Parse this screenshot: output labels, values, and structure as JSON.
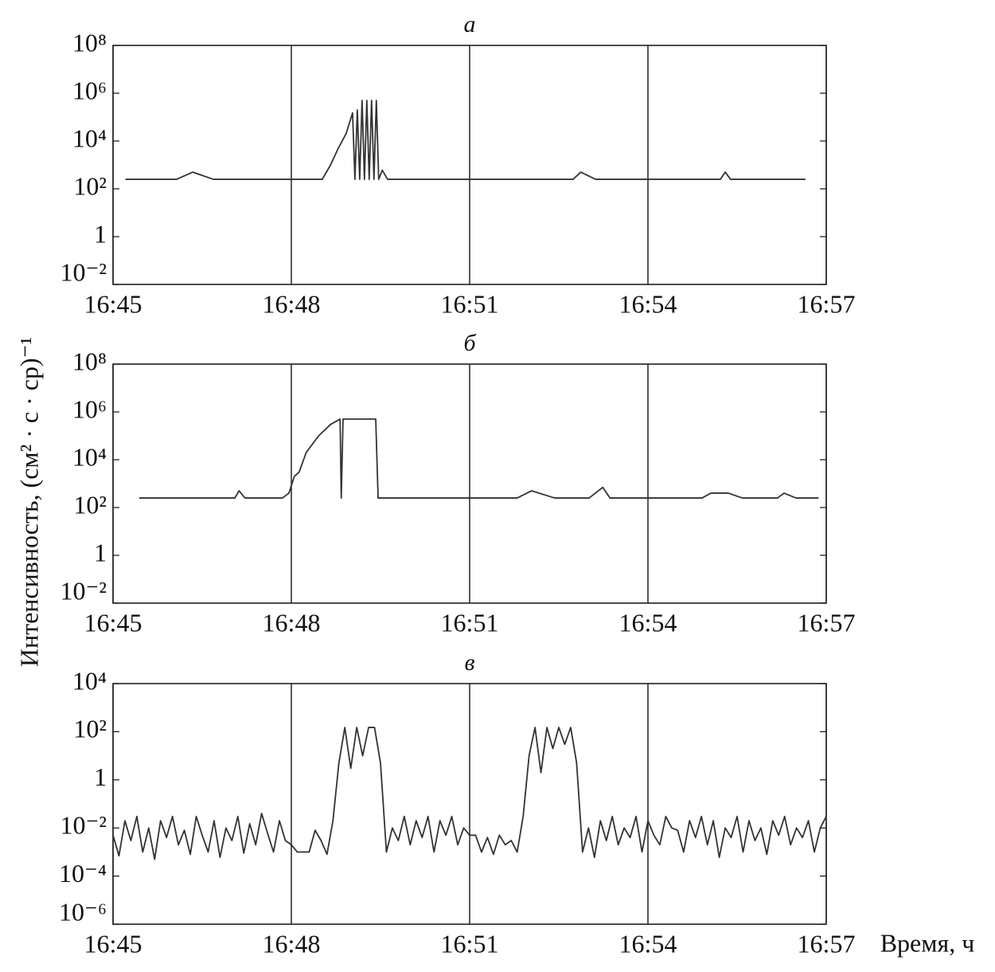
{
  "ylabel": "Интенсивность, (см² · с · ср)⁻¹",
  "xlabel": "Время, ч",
  "chart_data": [
    {
      "type": "line",
      "title": "а",
      "log_y": true,
      "grid": "x",
      "color": "#333333",
      "xlim": [
        1005,
        1017
      ],
      "xticks": [
        {
          "value": 1005,
          "label": "16:45"
        },
        {
          "value": 1008,
          "label": "16:48"
        },
        {
          "value": 1011,
          "label": "16:51"
        },
        {
          "value": 1014,
          "label": "16:54"
        },
        {
          "value": 1017,
          "label": "16:57"
        }
      ],
      "ylim": [
        0.01,
        100000000
      ],
      "yticks": [
        {
          "value": 100000000,
          "label": "10⁸"
        },
        {
          "value": 1000000,
          "label": "10⁶"
        },
        {
          "value": 10000,
          "label": "10⁴"
        },
        {
          "value": 100,
          "label": "10²"
        },
        1,
        {
          "value": 0.01,
          "label": "10⁻²"
        }
      ],
      "x": [
        1005.21,
        1006.07,
        1006.34,
        1006.69,
        1008.52,
        1008.66,
        1008.79,
        1008.92,
        1009.03,
        1009.07,
        1009.11,
        1009.15,
        1009.19,
        1009.23,
        1009.27,
        1009.31,
        1009.35,
        1009.39,
        1009.43,
        1009.47,
        1009.53,
        1009.62,
        1012.74,
        1012.87,
        1013.12,
        1015.22,
        1015.3,
        1015.39,
        1016.65
      ],
      "values": [
        250,
        250,
        500,
        250,
        250,
        1000,
        5000,
        20000,
        150000,
        250,
        200000,
        250,
        500000,
        250,
        500000,
        250,
        500000,
        250,
        500000,
        250,
        600,
        250,
        250,
        500,
        250,
        250,
        500,
        250,
        250
      ]
    },
    {
      "type": "line",
      "title": "б",
      "log_y": true,
      "grid": "x",
      "color": "#333333",
      "xlim": [
        1005,
        1017
      ],
      "xticks": [
        {
          "value": 1005,
          "label": "16:45"
        },
        {
          "value": 1008,
          "label": "16:48"
        },
        {
          "value": 1011,
          "label": "16:51"
        },
        {
          "value": 1014,
          "label": "16:54"
        },
        {
          "value": 1017,
          "label": "16:57"
        }
      ],
      "ylim": [
        0.01,
        100000000
      ],
      "yticks": [
        {
          "value": 100000000,
          "label": "10⁸"
        },
        {
          "value": 1000000,
          "label": "10⁶"
        },
        {
          "value": 10000,
          "label": "10⁴"
        },
        {
          "value": 100,
          "label": "10²"
        },
        1,
        {
          "value": 0.01,
          "label": "10⁻²"
        }
      ],
      "x": [
        1005.44,
        1007.05,
        1007.12,
        1007.22,
        1007.85,
        1007.96,
        1008.05,
        1008.13,
        1008.25,
        1008.46,
        1008.66,
        1008.82,
        1008.84,
        1008.87,
        1009.42,
        1009.46,
        1011.8,
        1012.04,
        1012.43,
        1013.01,
        1013.24,
        1013.36,
        1014.91,
        1015.06,
        1015.35,
        1015.59,
        1016.18,
        1016.29,
        1016.49,
        1016.87
      ],
      "values": [
        250,
        250,
        500,
        250,
        250,
        400,
        2000,
        3000,
        20000,
        100000,
        300000,
        500000,
        250,
        500000,
        500000,
        250,
        250,
        500,
        250,
        250,
        700,
        250,
        250,
        400,
        400,
        250,
        250,
        400,
        250,
        250
      ]
    },
    {
      "type": "line",
      "title": "в",
      "log_y": true,
      "grid": "x",
      "color": "#333333",
      "xlim": [
        1005,
        1017
      ],
      "xticks": [
        {
          "value": 1005,
          "label": "16:45"
        },
        {
          "value": 1008,
          "label": "16:48"
        },
        {
          "value": 1011,
          "label": "16:51"
        },
        {
          "value": 1014,
          "label": "16:54"
        },
        {
          "value": 1017,
          "label": "16:57"
        }
      ],
      "ylim": [
        1e-06,
        10000
      ],
      "yticks": [
        {
          "value": 10000,
          "label": "10⁴"
        },
        {
          "value": 100,
          "label": "10²"
        },
        1,
        {
          "value": 0.01,
          "label": "10⁻²"
        },
        {
          "value": 0.0001,
          "label": "10⁻⁴"
        },
        {
          "value": 1e-06,
          "label": "10⁻⁶"
        }
      ],
      "x": [
        1005,
        1005.1,
        1005.2,
        1005.3,
        1005.4,
        1005.5,
        1005.6,
        1005.7,
        1005.8,
        1005.9,
        1006,
        1006.1,
        1006.2,
        1006.3,
        1006.4,
        1006.5,
        1006.6,
        1006.7,
        1006.8,
        1006.9,
        1007,
        1007.1,
        1007.2,
        1007.3,
        1007.4,
        1007.5,
        1007.6,
        1007.7,
        1007.8,
        1007.9,
        1008,
        1008.1,
        1008.2,
        1008.3,
        1008.4,
        1008.5,
        1008.6,
        1008.7,
        1008.8,
        1008.9,
        1009,
        1009.1,
        1009.2,
        1009.3,
        1009.4,
        1009.5,
        1009.6,
        1009.7,
        1009.8,
        1009.9,
        1010,
        1010.1,
        1010.2,
        1010.3,
        1010.4,
        1010.5,
        1010.6,
        1010.7,
        1010.8,
        1010.9,
        1011,
        1011.1,
        1011.2,
        1011.3,
        1011.4,
        1011.5,
        1011.6,
        1011.7,
        1011.8,
        1011.9,
        1012,
        1012.1,
        1012.2,
        1012.3,
        1012.4,
        1012.5,
        1012.6,
        1012.7,
        1012.8,
        1012.9,
        1013,
        1013.1,
        1013.2,
        1013.3,
        1013.4,
        1013.5,
        1013.6,
        1013.7,
        1013.8,
        1013.9,
        1014,
        1014.1,
        1014.2,
        1014.3,
        1014.4,
        1014.5,
        1014.6,
        1014.7,
        1014.8,
        1014.9,
        1015,
        1015.1,
        1015.2,
        1015.3,
        1015.4,
        1015.5,
        1015.6,
        1015.7,
        1015.8,
        1015.9,
        1016,
        1016.1,
        1016.2,
        1016.3,
        1016.4,
        1016.5,
        1016.6,
        1016.7,
        1016.8,
        1016.9,
        1017
      ],
      "values": [
        0.005,
        0.0007,
        0.02,
        0.003,
        0.03,
        0.001,
        0.01,
        0.0005,
        0.02,
        0.004,
        0.03,
        0.002,
        0.008,
        0.0008,
        0.03,
        0.005,
        0.001,
        0.02,
        0.0006,
        0.01,
        0.003,
        0.03,
        0.0009,
        0.015,
        0.002,
        0.04,
        0.006,
        0.001,
        0.02,
        0.003,
        0.002,
        0.001,
        0.001,
        0.001,
        0.008,
        0.003,
        0.0008,
        0.02,
        5,
        150,
        3,
        150,
        10,
        150,
        150,
        5,
        0.001,
        0.01,
        0.003,
        0.03,
        0.002,
        0.02,
        0.004,
        0.03,
        0.001,
        0.02,
        0.005,
        0.03,
        0.002,
        0.01,
        0.005,
        0.005,
        0.001,
        0.004,
        0.0008,
        0.005,
        0.002,
        0.003,
        0.001,
        0.03,
        10,
        150,
        2,
        150,
        20,
        150,
        30,
        150,
        5,
        0.001,
        0.01,
        0.0006,
        0.02,
        0.003,
        0.03,
        0.002,
        0.01,
        0.004,
        0.03,
        0.001,
        0.02,
        0.005,
        0.002,
        0.03,
        0.01,
        0.008,
        0.001,
        0.02,
        0.004,
        0.03,
        0.002,
        0.02,
        0.0006,
        0.01,
        0.004,
        0.03,
        0.001,
        0.02,
        0.003,
        0.01,
        0.0008,
        0.02,
        0.005,
        0.03,
        0.002,
        0.01,
        0.004,
        0.02,
        0.001,
        0.01,
        0.03
      ]
    }
  ]
}
